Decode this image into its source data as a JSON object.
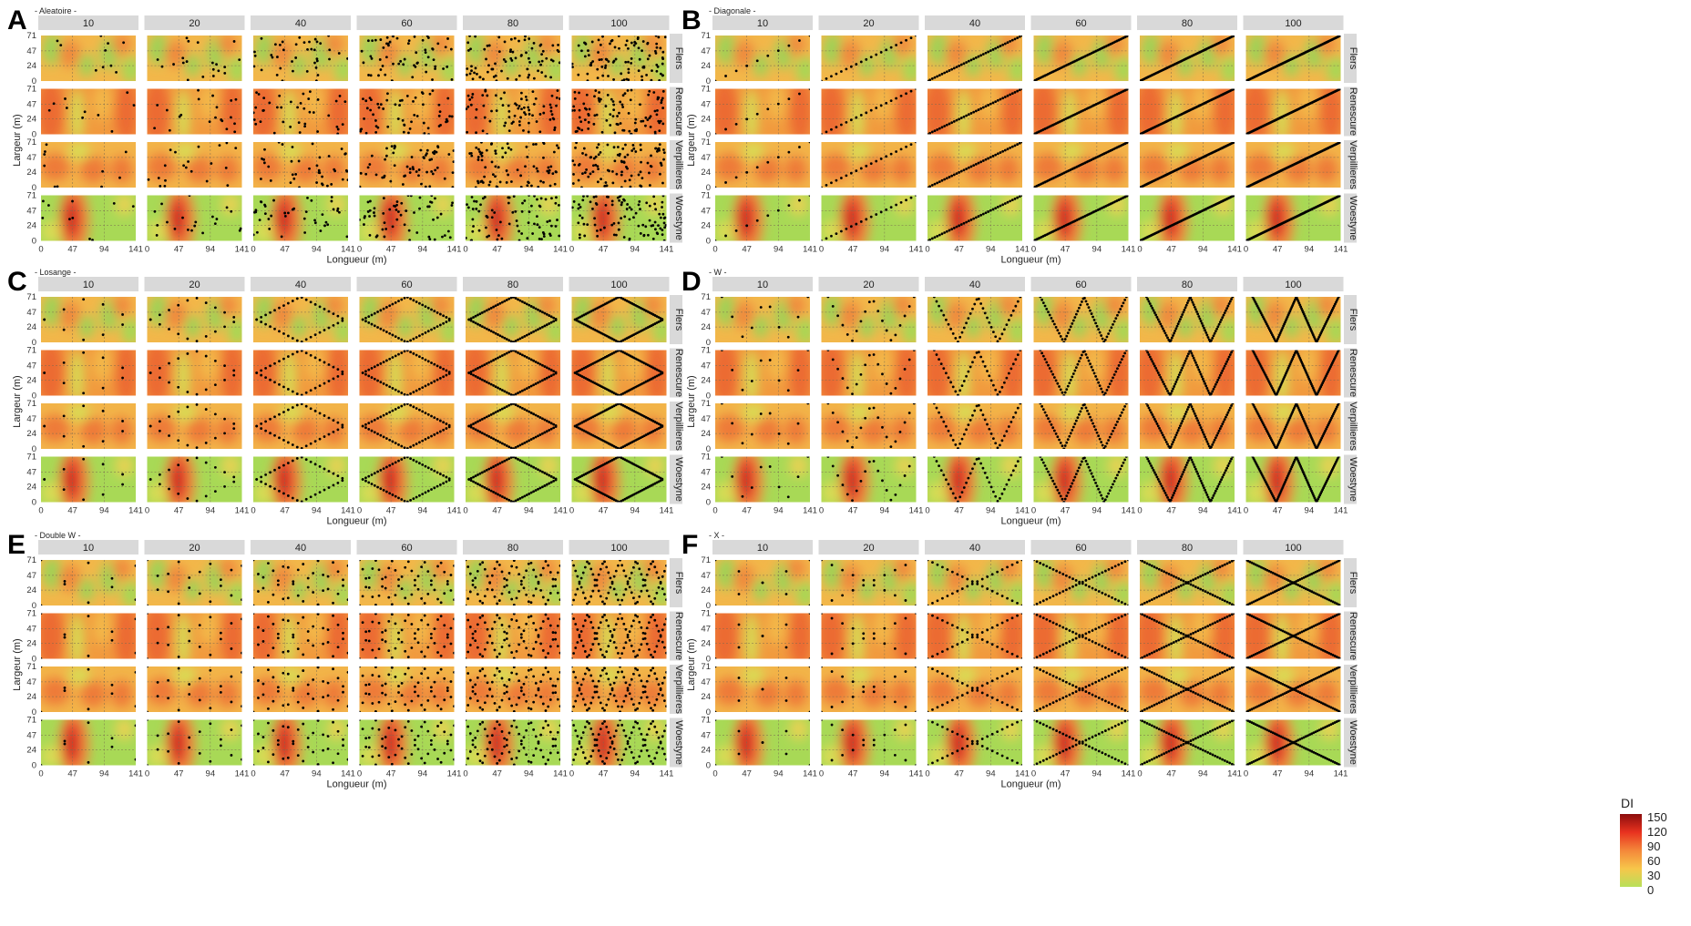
{
  "chart_data": {
    "type": "heatmap",
    "description_panels": "six faceted heatmap panels of sampling designs over four fields",
    "columns": [
      "10",
      "20",
      "40",
      "60",
      "80",
      "100"
    ],
    "fields": [
      "Flers",
      "Renescure",
      "Verpillieres",
      "Woestyne"
    ],
    "x_ticks": [
      "0",
      "47",
      "94",
      "141"
    ],
    "y_ticks": [
      "0",
      "24",
      "47",
      "71"
    ],
    "xlim": [
      0,
      141
    ],
    "ylim": [
      0,
      71
    ],
    "xlabel": "Longueur (m)",
    "ylabel": "Largeur (m)",
    "panels": [
      {
        "letter": "A",
        "title": "- Aleatoire -",
        "design": "random"
      },
      {
        "letter": "B",
        "title": "- Diagonale -",
        "design": "diagonal"
      },
      {
        "letter": "C",
        "title": "- Losange -",
        "design": "losange"
      },
      {
        "letter": "D",
        "title": "- W -",
        "design": "w"
      },
      {
        "letter": "E",
        "title": "- Double W -",
        "design": "double_w"
      },
      {
        "letter": "F",
        "title": "- X -",
        "design": "x"
      }
    ],
    "legend": {
      "title": "DI",
      "labels": [
        "150",
        "120",
        "90",
        "60",
        "30",
        "0"
      ],
      "range": [
        0,
        150
      ],
      "colors": [
        "#8b0d0d",
        "#e8321f",
        "#f4873a",
        "#f7c64a",
        "#b8e05a"
      ]
    },
    "grid": true,
    "grid_style": "dashed"
  },
  "colors": {
    "strip": "#d9d9d9",
    "background": "#ffffff",
    "points": "#000000"
  }
}
